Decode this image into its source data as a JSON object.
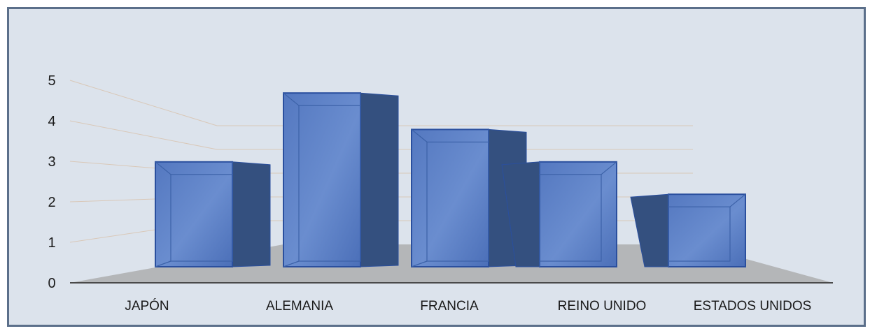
{
  "chart_data": {
    "type": "bar",
    "variant": "3d-column",
    "categories": [
      "JAPÓN",
      "ALEMANIA",
      "FRANCIA",
      "REINO UNIDO",
      "ESTADOS UNIDOS"
    ],
    "values": [
      2.9,
      4.6,
      3.7,
      2.9,
      2.1
    ],
    "yticks": [
      "0",
      "1",
      "2",
      "3",
      "4",
      "5"
    ],
    "ylim": [
      0,
      5
    ],
    "grid": true,
    "legend": "none",
    "colors": {
      "bar_front": "#4f76c2",
      "bar_side": "#34507f",
      "bar_edge": "#2a4f9e",
      "floor": "#b4b6b8",
      "background": "#dce3ec",
      "frame": "#5b6f8a"
    }
  }
}
